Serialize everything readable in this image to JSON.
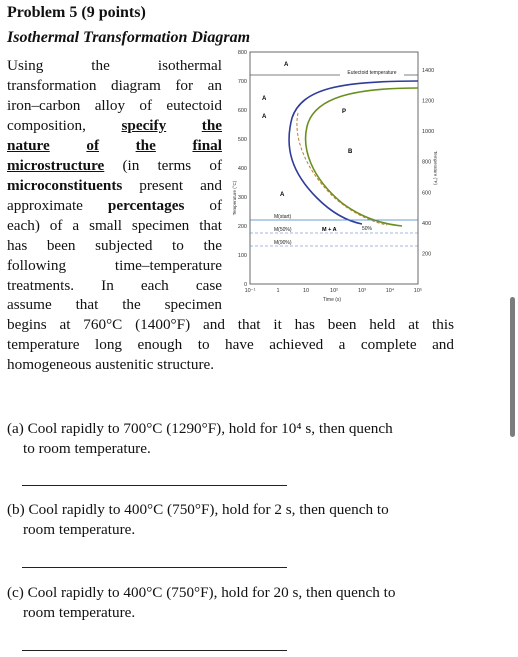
{
  "problem": {
    "title": "Problem 5 (9 points)",
    "subtitle": "Isothermal Transformation Diagram"
  },
  "body_lines": [
    "Using the isothermal",
    "transformation diagram for an",
    "iron–carbon alloy of eutectoid",
    "composition,",
    "the",
    "final",
    "(in terms of",
    "present and",
    "approximate",
    "of",
    "each) of a small specimen that",
    "has been subjected to the",
    "following time–temperature",
    "treatments. In each case",
    "assume that the specimen",
    "begins at 760°C (1400°F) and that it has been held at this",
    "temperature long enough to have achieved a complete and",
    "homogeneous austenitic structure."
  ],
  "emph": {
    "specify": "specify",
    "nature": "nature",
    "microstructure": "microstructure",
    "microconstituents": "microconstituents",
    "percentages": "percentages"
  },
  "questions": [
    {
      "text": "(a) Cool rapidly to 700°C (1290°F), hold for 10⁴ s, then quench",
      "text2": "to room temperature."
    },
    {
      "text": "(b) Cool rapidly to 400°C (750°F), hold for 2 s, then quench to",
      "text2": "room temperature."
    },
    {
      "text": "(c) Cool rapidly to 400°C (750°F), hold for 20 s, then quench to",
      "text2": "room temperature."
    }
  ],
  "diagram": {
    "y_left_ticks": [
      "800",
      "700",
      "600",
      "500",
      "400",
      "300",
      "200",
      "100",
      "0"
    ],
    "y_right_ticks": [
      "1400",
      "1200",
      "1000",
      "800",
      "600",
      "400",
      "200"
    ],
    "x_ticks": [
      "10⁻¹",
      "1",
      "10",
      "10²",
      "10³",
      "10⁴",
      "10⁵"
    ],
    "x_label": "Time (s)",
    "y_left_label": "Temperature (°C)",
    "y_right_label": "Temperature (°F)",
    "eutectoid_label": "Eutectoid temperature",
    "region_labels": [
      "A",
      "A",
      "A",
      "P",
      "B",
      "A",
      "M + A"
    ],
    "martensite_labels": [
      "M(start)",
      "M(50%)",
      "M(90%)"
    ],
    "percent_label": "50%"
  }
}
